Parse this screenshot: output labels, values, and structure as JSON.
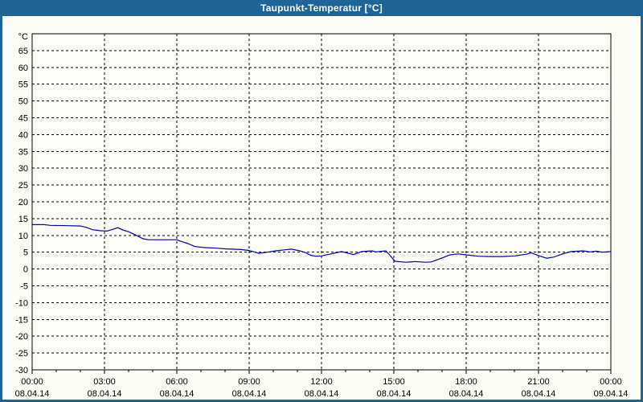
{
  "window": {
    "title": "Taupunkt-Temperatur [°C]"
  },
  "colors": {
    "titlebar_bg": "#1E6496",
    "frame": "#1E6496",
    "title_text": "#FFFFFF",
    "page_bg": "#FDFDF6",
    "plot_bg": "#FEFEF8",
    "grid": "#000000",
    "axis": "#000000",
    "line": "#0000B4"
  },
  "chart_data": {
    "type": "line",
    "title": "Taupunkt-Temperatur [°C]",
    "y_unit": "°C",
    "ylim": [
      -30,
      70
    ],
    "y_tick_step": 5,
    "y_ticks": [
      65,
      60,
      55,
      50,
      45,
      40,
      35,
      30,
      25,
      20,
      15,
      10,
      5,
      0,
      -5,
      -10,
      -15,
      -20,
      -25,
      -30
    ],
    "x_hours_range": [
      0,
      24
    ],
    "x_minor_step_hours": 1,
    "x_major_ticks": [
      {
        "hour": 0,
        "time": "00:00",
        "date": "08.04.14"
      },
      {
        "hour": 3,
        "time": "03:00",
        "date": "08.04.14"
      },
      {
        "hour": 6,
        "time": "06:00",
        "date": "08.04.14"
      },
      {
        "hour": 9,
        "time": "09:00",
        "date": "08.04.14"
      },
      {
        "hour": 12,
        "time": "12:00",
        "date": "08.04.14"
      },
      {
        "hour": 15,
        "time": "15:00",
        "date": "08.04.14"
      },
      {
        "hour": 18,
        "time": "18:00",
        "date": "08.04.14"
      },
      {
        "hour": 21,
        "time": "21:00",
        "date": "08.04.14"
      },
      {
        "hour": 24,
        "time": "00:00",
        "date": "09.04.14"
      }
    ],
    "grid": "dashed",
    "legend_position": "none",
    "series": [
      {
        "name": "Taupunkt-Temperatur",
        "color": "#0000B4",
        "points": [
          [
            0.0,
            13.2
          ],
          [
            0.5,
            13.2
          ],
          [
            0.75,
            13.0
          ],
          [
            1.5,
            12.9
          ],
          [
            2.0,
            12.8
          ],
          [
            2.25,
            12.4
          ],
          [
            2.5,
            11.7
          ],
          [
            2.8,
            11.4
          ],
          [
            3.1,
            11.3
          ],
          [
            3.3,
            11.7
          ],
          [
            3.55,
            12.3
          ],
          [
            3.8,
            11.5
          ],
          [
            4.0,
            11.1
          ],
          [
            4.33,
            10.0
          ],
          [
            4.6,
            9.0
          ],
          [
            4.83,
            8.7
          ],
          [
            6.0,
            8.7
          ],
          [
            6.15,
            8.3
          ],
          [
            6.45,
            7.6
          ],
          [
            6.75,
            6.7
          ],
          [
            7.1,
            6.4
          ],
          [
            7.67,
            6.2
          ],
          [
            8.0,
            6.0
          ],
          [
            8.67,
            5.8
          ],
          [
            9.0,
            5.5
          ],
          [
            9.4,
            4.7
          ],
          [
            9.75,
            5.0
          ],
          [
            10.1,
            5.4
          ],
          [
            10.45,
            5.7
          ],
          [
            10.75,
            5.9
          ],
          [
            11.05,
            5.5
          ],
          [
            11.33,
            4.9
          ],
          [
            11.55,
            4.1
          ],
          [
            11.75,
            3.8
          ],
          [
            12.0,
            3.9
          ],
          [
            12.33,
            4.4
          ],
          [
            12.83,
            5.2
          ],
          [
            13.33,
            4.3
          ],
          [
            13.67,
            5.2
          ],
          [
            14.1,
            5.4
          ],
          [
            14.25,
            5.1
          ],
          [
            14.67,
            5.4
          ],
          [
            14.85,
            4.0
          ],
          [
            15.05,
            2.3
          ],
          [
            15.5,
            2.0
          ],
          [
            15.9,
            2.2
          ],
          [
            16.3,
            2.0
          ],
          [
            16.55,
            2.1
          ],
          [
            16.75,
            2.6
          ],
          [
            17.0,
            3.3
          ],
          [
            17.33,
            4.2
          ],
          [
            17.67,
            4.5
          ],
          [
            17.9,
            4.3
          ],
          [
            18.0,
            4.2
          ],
          [
            18.5,
            3.8
          ],
          [
            19.0,
            3.7
          ],
          [
            19.5,
            3.7
          ],
          [
            20.0,
            3.9
          ],
          [
            20.5,
            4.4
          ],
          [
            20.7,
            4.8
          ],
          [
            21.0,
            4.0
          ],
          [
            21.35,
            3.2
          ],
          [
            21.65,
            3.6
          ],
          [
            22.0,
            4.5
          ],
          [
            22.35,
            5.2
          ],
          [
            22.85,
            5.4
          ],
          [
            23.15,
            5.1
          ],
          [
            23.4,
            5.3
          ],
          [
            23.65,
            5.0
          ],
          [
            24.0,
            5.2
          ]
        ]
      }
    ]
  }
}
